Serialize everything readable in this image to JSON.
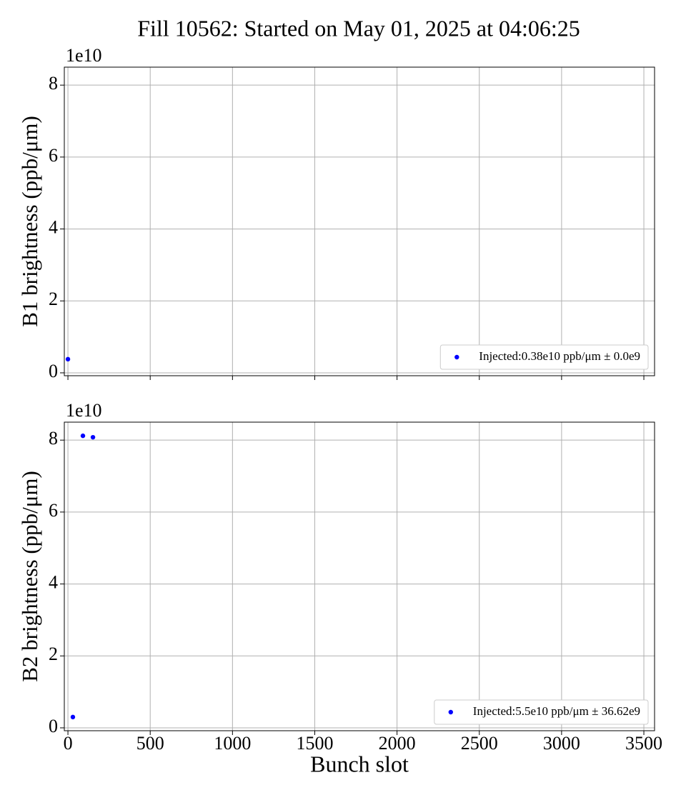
{
  "chart_data": [
    {
      "type": "scatter",
      "title": "Fill 10562: Started on May 01, 2025 at 04:06:25",
      "ylabel": "B1 brightness (ppb/μm)",
      "y_offset_label": "1e10",
      "xlim": [
        -22,
        3565
      ],
      "xticks": [
        0,
        500,
        1000,
        1500,
        2000,
        2500,
        3000,
        3500
      ],
      "ylim": [
        -0.08,
        8.5
      ],
      "yticks": [
        0,
        2,
        4,
        6,
        8
      ],
      "grid": true,
      "legend": "lower right",
      "series": [
        {
          "name": "Injected:0.38e10 ppb/μm ± 0.0e9",
          "color": "#0000ff",
          "x": [
            0
          ],
          "values": [
            0.38
          ]
        }
      ]
    },
    {
      "type": "scatter",
      "ylabel": "B2 brightness (ppb/μm)",
      "y_offset_label": "1e10",
      "xlabel": "Bunch slot",
      "xlim": [
        -22,
        3565
      ],
      "xticks": [
        0,
        500,
        1000,
        1500,
        2000,
        2500,
        3000,
        3500
      ],
      "ylim": [
        -0.08,
        8.5
      ],
      "yticks": [
        0,
        2,
        4,
        6,
        8
      ],
      "grid": true,
      "legend": "lower right",
      "series": [
        {
          "name": "Injected:5.5e10 ppb/μm ± 36.62e9",
          "color": "#0000ff",
          "x": [
            30,
            91,
            152
          ],
          "values": [
            0.3,
            8.12,
            8.08
          ]
        }
      ]
    }
  ]
}
